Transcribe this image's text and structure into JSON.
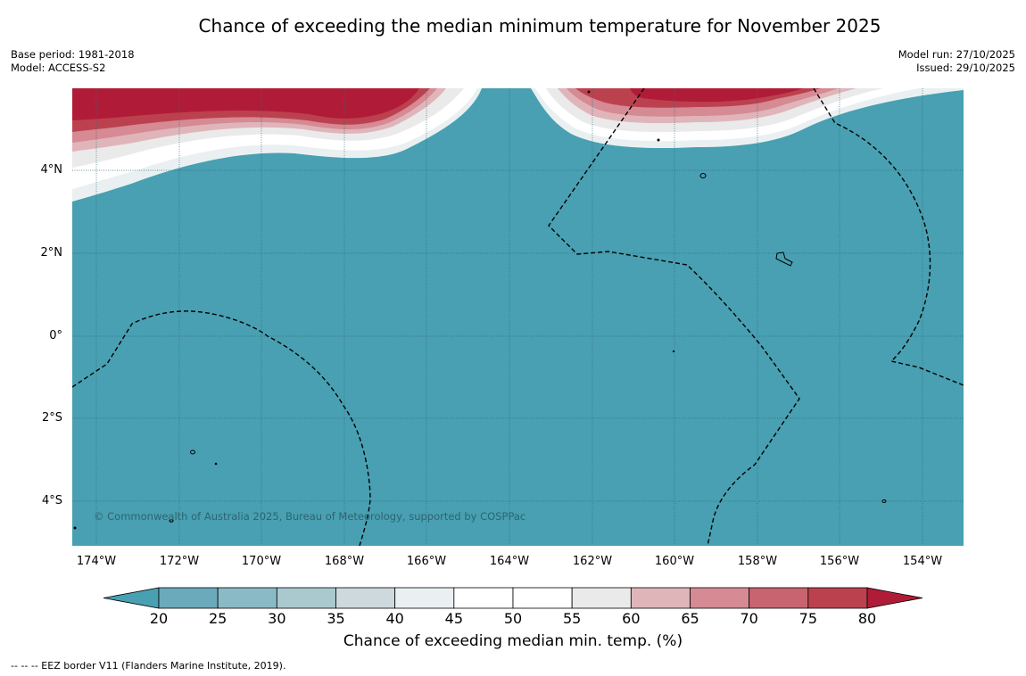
{
  "title": "Chance of exceeding the median minimum temperature for November 2025",
  "meta": {
    "base_period": "Base period: 1981-2018",
    "model": "Model: ACCESS-S2",
    "model_run": "Model run: 27/10/2025",
    "issued": "Issued: 29/10/2025"
  },
  "map": {
    "lat_labels": [
      "4°N",
      "2°N",
      "0°",
      "2°S",
      "4°S"
    ],
    "lon_labels": [
      "174°W",
      "172°W",
      "170°W",
      "168°W",
      "166°W",
      "164°W",
      "162°W",
      "160°W",
      "158°W",
      "156°W",
      "154°W"
    ],
    "background_color": "#48a0b2",
    "copyright": "© Commonwealth of Australia 2025, Bureau of Meteorology, supported by COSPPac"
  },
  "colorbar": {
    "ticks": [
      "20",
      "25",
      "30",
      "35",
      "40",
      "45",
      "50",
      "55",
      "60",
      "65",
      "70",
      "75",
      "80"
    ],
    "colors": [
      "#6aaabb",
      "#8abac6",
      "#aac9cf",
      "#cdd9dc",
      "#eaf0f1",
      "#ffffff",
      "#ffffff",
      "#ebeaea",
      "#e0b5ba",
      "#d58a94",
      "#c8646f",
      "#bc414e"
    ],
    "low_color": "#48a0b2",
    "high_color": "#b01c38",
    "title": "Chance of exceeding median min. temp. (%)"
  },
  "footnote": "--  --  -- EEZ border V11 (Flanders Marine Institute, 2019)."
}
